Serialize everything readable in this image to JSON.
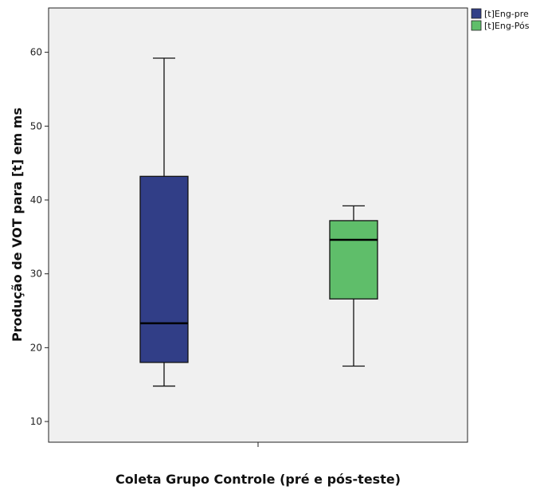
{
  "chart_data": {
    "type": "boxplot",
    "xlabel": "Coleta Grupo Controle (pré e pós-teste)",
    "ylabel": "Produção de VOT para [t] em ms",
    "ylim": [
      7.2,
      66.0
    ],
    "yticks": [
      10,
      20,
      30,
      40,
      50,
      60
    ],
    "grid": false,
    "legend_position": "top-right",
    "plot_background": "#f0f0f0",
    "series": [
      {
        "name": "[t]Eng-pre",
        "color": "#313e87",
        "min": 14.8,
        "q1": 18.0,
        "median": 23.3,
        "q3": 43.2,
        "max": 59.2
      },
      {
        "name": "[t]Eng-Pós",
        "color": "#5fbe6a",
        "min": 17.5,
        "q1": 26.6,
        "median": 34.6,
        "q3": 37.2,
        "max": 39.2
      }
    ]
  }
}
